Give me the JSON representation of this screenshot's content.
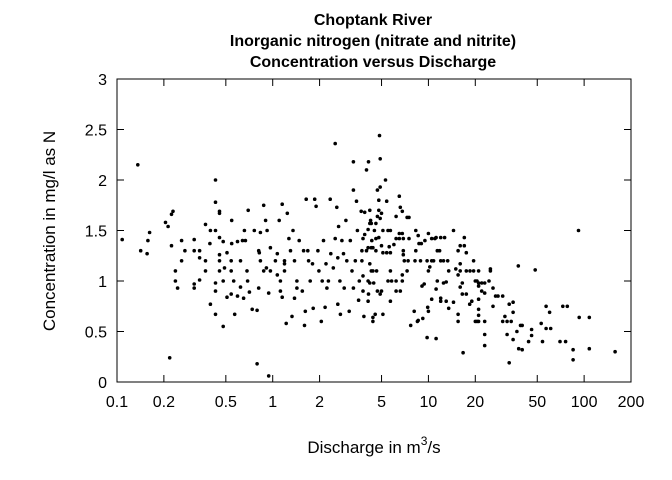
{
  "chart_data": {
    "type": "scatter",
    "title": [
      "Choptank River",
      "Inorganic nitrogen (nitrate and nitrite)",
      "Concentration versus Discharge"
    ],
    "xlabel": {
      "text": "Discharge in m",
      "sup": "3",
      "suffix": "/s"
    },
    "ylabel": "Concentration in mg/l as N",
    "xscale": "log",
    "xlim": [
      0.1,
      200
    ],
    "ylim": [
      0,
      3
    ],
    "xticks": [
      0.1,
      0.2,
      0.5,
      1,
      2,
      5,
      10,
      20,
      50,
      100,
      200
    ],
    "xtick_labels": [
      "0.1",
      "0.2",
      "0.5",
      "1",
      "2",
      "5",
      "10",
      "20",
      "50",
      "100",
      "200"
    ],
    "yticks": [
      0,
      0.5,
      1,
      1.5,
      2,
      2.5,
      3
    ],
    "ytick_labels": [
      "0",
      "0.5",
      "1",
      "1.5",
      "2",
      "2.5",
      "3"
    ],
    "grid": false,
    "marker_color": "#000000",
    "points": [
      [
        0.108,
        1.41
      ],
      [
        0.136,
        2.15
      ],
      [
        0.142,
        1.3
      ],
      [
        0.156,
        1.27
      ],
      [
        0.158,
        1.4
      ],
      [
        0.162,
        1.48
      ],
      [
        0.205,
        1.58
      ],
      [
        0.213,
        1.54
      ],
      [
        0.218,
        0.24
      ],
      [
        0.224,
        1.35
      ],
      [
        0.224,
        1.66
      ],
      [
        0.229,
        1.69
      ],
      [
        0.237,
        1.1
      ],
      [
        0.237,
        1.0
      ],
      [
        0.245,
        0.93
      ],
      [
        0.26,
        1.2
      ],
      [
        0.26,
        1.4
      ],
      [
        0.273,
        1.3
      ],
      [
        0.313,
        0.97
      ],
      [
        0.313,
        0.93
      ],
      [
        0.313,
        1.41
      ],
      [
        0.313,
        1.3
      ],
      [
        0.339,
        1.3
      ],
      [
        0.339,
        1.23
      ],
      [
        0.339,
        1.01
      ],
      [
        0.37,
        1.2
      ],
      [
        0.37,
        1.1
      ],
      [
        0.37,
        1.56
      ],
      [
        0.395,
        1.37
      ],
      [
        0.398,
        0.77
      ],
      [
        0.398,
        1.5
      ],
      [
        0.429,
        2.0
      ],
      [
        0.429,
        1.78
      ],
      [
        0.429,
        0.98
      ],
      [
        0.429,
        0.67
      ],
      [
        0.429,
        0.9
      ],
      [
        0.429,
        1.5
      ],
      [
        0.455,
        1.67
      ],
      [
        0.455,
        1.69
      ],
      [
        0.455,
        1.26
      ],
      [
        0.455,
        1.2
      ],
      [
        0.455,
        1.43
      ],
      [
        0.455,
        1.1
      ],
      [
        0.481,
        1.39
      ],
      [
        0.481,
        1.0
      ],
      [
        0.481,
        0.55
      ],
      [
        0.49,
        1.13
      ],
      [
        0.509,
        0.84
      ],
      [
        0.509,
        1.28
      ],
      [
        0.541,
        1.2
      ],
      [
        0.541,
        1.1
      ],
      [
        0.541,
        0.87
      ],
      [
        0.545,
        1.37
      ],
      [
        0.545,
        1.6
      ],
      [
        0.562,
        1.0
      ],
      [
        0.57,
        0.67
      ],
      [
        0.594,
        0.85
      ],
      [
        0.594,
        1.39
      ],
      [
        0.621,
        0.94
      ],
      [
        0.64,
        1.4
      ],
      [
        0.621,
        1.2
      ],
      [
        0.658,
        1.5
      ],
      [
        0.668,
        1.4
      ],
      [
        0.65,
        0.83
      ],
      [
        0.684,
        1.1
      ],
      [
        0.69,
        1.0
      ],
      [
        0.696,
        1.7
      ],
      [
        0.708,
        0.89
      ],
      [
        0.738,
        0.72
      ],
      [
        0.762,
        1.5
      ],
      [
        0.794,
        0.18
      ],
      [
        0.794,
        0.71
      ],
      [
        0.813,
        1.3
      ],
      [
        0.813,
        0.93
      ],
      [
        0.82,
        1.28
      ],
      [
        0.834,
        1.2
      ],
      [
        0.834,
        1.48
      ],
      [
        0.875,
        1.75
      ],
      [
        0.875,
        1.1
      ],
      [
        0.9,
        1.6
      ],
      [
        0.911,
        1.13
      ],
      [
        0.92,
        1.5
      ],
      [
        0.943,
        0.06
      ],
      [
        0.943,
        0.88
      ],
      [
        0.966,
        1.33
      ],
      [
        0.966,
        1.1
      ],
      [
        1.04,
        1.2
      ],
      [
        1.07,
        1.06
      ],
      [
        1.07,
        1.27
      ],
      [
        1.12,
        1.0
      ],
      [
        1.1,
        1.6
      ],
      [
        1.12,
        0.9
      ],
      [
        1.15,
        1.76
      ],
      [
        1.15,
        0.84
      ],
      [
        1.19,
        1.2
      ],
      [
        1.19,
        1.1
      ],
      [
        1.19,
        1.17
      ],
      [
        1.22,
        0.58
      ],
      [
        1.24,
        1.67
      ],
      [
        1.27,
        1.42
      ],
      [
        1.3,
        1.3
      ],
      [
        1.33,
        0.65
      ],
      [
        1.35,
        1.5
      ],
      [
        1.38,
        1.2
      ],
      [
        1.38,
        0.83
      ],
      [
        1.43,
        1.0
      ],
      [
        1.43,
        0.93
      ],
      [
        1.48,
        1.4
      ],
      [
        1.55,
        0.9
      ],
      [
        1.58,
        1.3
      ],
      [
        1.6,
        0.56
      ],
      [
        1.62,
        0.7
      ],
      [
        1.64,
        1.81
      ],
      [
        1.68,
        1.3
      ],
      [
        1.7,
        1.2
      ],
      [
        1.74,
        1.0
      ],
      [
        1.8,
        1.17
      ],
      [
        1.82,
        0.73
      ],
      [
        1.86,
        1.81
      ],
      [
        1.9,
        1.74
      ],
      [
        1.95,
        1.3
      ],
      [
        1.98,
        1.1
      ],
      [
        2.05,
        0.6
      ],
      [
        2.08,
        1.0
      ],
      [
        2.12,
        1.4
      ],
      [
        2.17,
        0.74
      ],
      [
        2.2,
        1.17
      ],
      [
        2.23,
        0.93
      ],
      [
        2.28,
        1.0
      ],
      [
        2.34,
        1.81
      ],
      [
        2.36,
        1.27
      ],
      [
        2.45,
        1.13
      ],
      [
        2.52,
        1.42
      ],
      [
        2.52,
        2.36
      ],
      [
        2.58,
        1.73
      ],
      [
        2.62,
        1.23
      ],
      [
        2.62,
        0.77
      ],
      [
        2.65,
        1.54
      ],
      [
        2.7,
        1.0
      ],
      [
        2.72,
        0.67
      ],
      [
        2.78,
        1.4
      ],
      [
        2.85,
        1.27
      ],
      [
        2.88,
        0.93
      ],
      [
        2.95,
        1.6
      ],
      [
        2.99,
        1.2
      ],
      [
        3.1,
        0.7
      ],
      [
        3.15,
        1.4
      ],
      [
        3.3,
        2.18
      ],
      [
        3.23,
        1.1
      ],
      [
        3.3,
        1.9
      ],
      [
        3.3,
        0.93
      ],
      [
        3.39,
        1.2
      ],
      [
        3.45,
        1.79
      ],
      [
        3.5,
        1.5
      ],
      [
        3.56,
        0.81
      ],
      [
        3.6,
        1.0
      ],
      [
        3.74,
        1.2
      ],
      [
        3.74,
        1.3
      ],
      [
        3.8,
        1.05
      ],
      [
        3.85,
        0.65
      ],
      [
        4.0,
        2.1
      ],
      [
        4.12,
        2.18
      ],
      [
        4.12,
        0.87
      ],
      [
        4.2,
        1.17
      ],
      [
        4.25,
        1.6
      ],
      [
        4.33,
        1.4
      ],
      [
        4.4,
        0.6
      ],
      [
        4.45,
        0.98
      ],
      [
        4.5,
        1.5
      ],
      [
        4.55,
        0.67
      ],
      [
        4.6,
        1.3
      ],
      [
        4.65,
        1.1
      ],
      [
        4.7,
        0.9
      ],
      [
        4.85,
        2.44
      ],
      [
        4.9,
        2.21
      ],
      [
        5.3,
        2.0
      ],
      [
        4.9,
        1.93
      ],
      [
        4.7,
        1.9
      ],
      [
        4.8,
        1.8
      ],
      [
        4.8,
        1.7
      ],
      [
        3.7,
        1.69
      ],
      [
        3.9,
        1.68
      ],
      [
        5.0,
        1.35
      ],
      [
        5.1,
        1.28
      ],
      [
        5.4,
        1.28
      ],
      [
        5.6,
        1.34
      ],
      [
        5.7,
        1.28
      ],
      [
        6.0,
        1.36
      ],
      [
        5.7,
        1.1
      ],
      [
        5.5,
        1.0
      ],
      [
        5.8,
        1.0
      ],
      [
        6.2,
        1.0
      ],
      [
        6.2,
        0.9
      ],
      [
        5.7,
        0.8
      ],
      [
        5.1,
        0.67
      ],
      [
        4.4,
        0.64
      ],
      [
        5.0,
        0.9
      ],
      [
        4.9,
        0.87
      ],
      [
        4.1,
        0.8
      ],
      [
        3.8,
        0.9
      ],
      [
        4.1,
        1.0
      ],
      [
        4.2,
        0.98
      ],
      [
        4.3,
        1.1
      ],
      [
        4.4,
        1.1
      ],
      [
        4.0,
        1.3
      ],
      [
        4.1,
        1.33
      ],
      [
        4.3,
        1.33
      ],
      [
        4.4,
        1.33
      ],
      [
        3.8,
        1.42
      ],
      [
        3.9,
        1.46
      ],
      [
        4.1,
        1.51
      ],
      [
        4.2,
        1.57
      ],
      [
        4.3,
        1.57
      ],
      [
        4.2,
        1.7
      ],
      [
        5.4,
        1.79
      ],
      [
        5.7,
        1.5
      ],
      [
        5.5,
        1.5
      ],
      [
        5.1,
        1.5
      ],
      [
        5.0,
        1.67
      ],
      [
        4.9,
        1.62
      ],
      [
        4.7,
        1.64
      ],
      [
        4.6,
        1.57
      ],
      [
        4.6,
        1.42
      ],
      [
        4.8,
        1.43
      ],
      [
        6.5,
        1.84
      ],
      [
        6.6,
        1.73
      ],
      [
        6.8,
        1.69
      ],
      [
        7.3,
        1.63
      ],
      [
        7.5,
        1.63
      ],
      [
        6.2,
        1.64
      ],
      [
        7.5,
        1.42
      ],
      [
        7.3,
        1.1
      ],
      [
        6.8,
        1.06
      ],
      [
        6.8,
        1.0
      ],
      [
        6.6,
        0.9
      ],
      [
        7.0,
        1.2
      ],
      [
        7.4,
        1.2
      ],
      [
        6.9,
        1.26
      ],
      [
        6.9,
        1.3
      ],
      [
        6.5,
        1.42
      ],
      [
        6.9,
        1.42
      ],
      [
        6.8,
        1.47
      ],
      [
        6.5,
        1.47
      ],
      [
        6.2,
        1.42
      ],
      [
        8.3,
        1.5
      ],
      [
        8.6,
        1.45
      ],
      [
        8.7,
        1.37
      ],
      [
        9.0,
        1.37
      ],
      [
        9.5,
        1.4
      ],
      [
        10.0,
        1.47
      ],
      [
        10.5,
        1.42
      ],
      [
        11.0,
        1.42
      ],
      [
        8.9,
        1.2
      ],
      [
        8.2,
        1.2
      ],
      [
        8.3,
        1.3
      ],
      [
        9.1,
        0.95
      ],
      [
        9.4,
        0.97
      ],
      [
        9.8,
        1.2
      ],
      [
        10.0,
        1.1
      ],
      [
        10.2,
        1.14
      ],
      [
        10.5,
        1.2
      ],
      [
        10.8,
        1.2
      ],
      [
        7.7,
        0.56
      ],
      [
        9.2,
        0.63
      ],
      [
        8.6,
        0.61
      ],
      [
        8.5,
        0.6
      ],
      [
        8.1,
        0.7
      ],
      [
        10.5,
        0.82
      ],
      [
        10.0,
        0.7
      ],
      [
        9.9,
        0.74
      ],
      [
        11.4,
        1.0
      ],
      [
        11.2,
        0.92
      ],
      [
        11.2,
        0.43
      ],
      [
        9.8,
        0.44
      ],
      [
        11.4,
        1.3
      ],
      [
        11.8,
        1.3
      ],
      [
        11.2,
        1.43
      ],
      [
        12.0,
        1.43
      ],
      [
        12.7,
        1.43
      ],
      [
        12.0,
        1.2
      ],
      [
        12.5,
        1.2
      ],
      [
        13.3,
        1.2
      ],
      [
        13.5,
        1.1
      ],
      [
        13.0,
        0.99
      ],
      [
        13.5,
        0.73
      ],
      [
        13.0,
        0.8
      ],
      [
        12.5,
        0.98
      ],
      [
        12.0,
        0.8
      ],
      [
        12.0,
        0.83
      ],
      [
        14.5,
        1.5
      ],
      [
        15.5,
        1.3
      ],
      [
        16.0,
        1.35
      ],
      [
        17.0,
        1.35
      ],
      [
        17.5,
        1.28
      ],
      [
        17.0,
        1.43
      ],
      [
        15.5,
        1.06
      ],
      [
        15.0,
        1.12
      ],
      [
        16.0,
        1.17
      ],
      [
        16.0,
        1.1
      ],
      [
        17.5,
        1.1
      ],
      [
        18.5,
        1.1
      ],
      [
        19.5,
        1.1
      ],
      [
        15.5,
        0.67
      ],
      [
        15.5,
        0.6
      ],
      [
        14.5,
        0.79
      ],
      [
        16.5,
        0.98
      ],
      [
        16.0,
        0.94
      ],
      [
        17.5,
        0.87
      ],
      [
        16.5,
        0.87
      ],
      [
        16.7,
        0.29
      ],
      [
        18.4,
        0.77
      ],
      [
        19.0,
        0.8
      ],
      [
        19.5,
        1.2
      ],
      [
        21.0,
        1.1
      ],
      [
        20.0,
        1.0
      ],
      [
        20.5,
        1.0
      ],
      [
        21.0,
        0.98
      ],
      [
        21.0,
        0.95
      ],
      [
        22.0,
        0.9
      ],
      [
        23.0,
        0.88
      ],
      [
        21.0,
        0.66
      ],
      [
        21.0,
        0.72
      ],
      [
        21.0,
        0.82
      ],
      [
        20.0,
        0.6
      ],
      [
        20.5,
        0.6
      ],
      [
        21.0,
        0.6
      ],
      [
        23.0,
        0.6
      ],
      [
        23.0,
        0.36
      ],
      [
        23.0,
        0.47
      ],
      [
        24.5,
        1.0
      ],
      [
        23.0,
        0.98
      ],
      [
        22.0,
        0.98
      ],
      [
        25.0,
        1.1
      ],
      [
        25.0,
        1.12
      ],
      [
        26.0,
        0.93
      ],
      [
        26.0,
        0.75
      ],
      [
        27.0,
        0.85
      ],
      [
        28.0,
        0.85
      ],
      [
        30.0,
        0.85
      ],
      [
        30.0,
        0.6
      ],
      [
        32.0,
        0.6
      ],
      [
        34.0,
        0.6
      ],
      [
        31.0,
        0.65
      ],
      [
        35.0,
        0.69
      ],
      [
        35.0,
        0.79
      ],
      [
        33.0,
        0.77
      ],
      [
        32.0,
        0.47
      ],
      [
        35.0,
        0.42
      ],
      [
        37.0,
        0.5
      ],
      [
        39.0,
        0.56
      ],
      [
        40.0,
        0.56
      ],
      [
        38.0,
        0.33
      ],
      [
        40.0,
        0.32
      ],
      [
        33.0,
        0.19
      ],
      [
        37.8,
        1.15
      ],
      [
        48.5,
        1.11
      ],
      [
        46.0,
        0.52
      ],
      [
        46.0,
        0.46
      ],
      [
        44.0,
        0.4
      ],
      [
        53.0,
        0.58
      ],
      [
        54.0,
        0.4
      ],
      [
        57.0,
        0.53
      ],
      [
        61.0,
        0.53
      ],
      [
        57.0,
        0.75
      ],
      [
        60.0,
        0.69
      ],
      [
        70.0,
        0.4
      ],
      [
        76.0,
        0.4
      ],
      [
        73.0,
        0.75
      ],
      [
        78.0,
        0.75
      ],
      [
        85.0,
        0.32
      ],
      [
        85.0,
        0.22
      ],
      [
        92.0,
        1.5
      ],
      [
        93.0,
        0.64
      ],
      [
        108.0,
        0.64
      ],
      [
        108.0,
        0.33
      ],
      [
        158.0,
        0.3
      ]
    ]
  }
}
